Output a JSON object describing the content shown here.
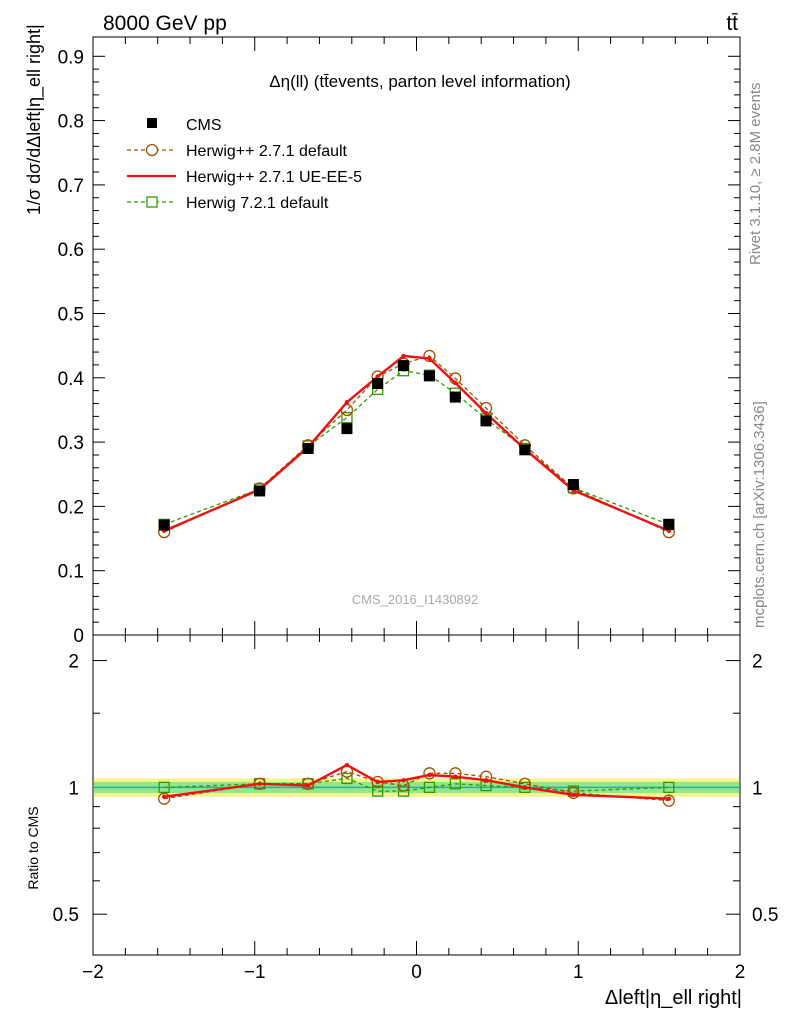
{
  "header": {
    "energy_label": "8000 GeV pp",
    "process_label": "tt̄"
  },
  "side_labels": {
    "rivet": "Rivet 3.1.10, ≥ 2.8M events",
    "mcplots": "mcplots.cern.ch [arXiv:1306.3436]"
  },
  "watermark": "CMS_2016_I1430892",
  "plot_title": "Δη(ll) (tt̄events, parton level information)",
  "colors": {
    "data": "#000000",
    "herwig_default": "#a05000",
    "herwig_ueee5": "#ee1111",
    "herwig7": "#339900",
    "band_inner": "#8fe88f",
    "band_outer": "#f4f48a",
    "ref_line": "#33aa99"
  },
  "chart_data": [
    {
      "type": "scatter",
      "panel": "main",
      "ylabel": "1/σ dσ/dΔleft|η_ell right|",
      "xlim": [
        -2,
        2
      ],
      "ylim": [
        0,
        0.93
      ],
      "yticks": [
        0,
        0.1,
        0.2,
        0.3,
        0.4,
        0.5,
        0.6,
        0.7,
        0.8,
        0.9
      ],
      "ytick_labels": [
        "0",
        "0.1",
        "0.2",
        "0.3",
        "0.4",
        "0.5",
        "0.6",
        "0.7",
        "0.8",
        "0.9"
      ],
      "legend_position": "top-left",
      "x": [
        -1.56,
        -0.97,
        -0.67,
        -0.43,
        -0.24,
        -0.08,
        0.08,
        0.24,
        0.43,
        0.67,
        0.97,
        1.56
      ],
      "series": [
        {
          "name": "CMS",
          "style": "marker",
          "color": "#000000",
          "values": [
            0.171,
            0.224,
            0.29,
            0.321,
            0.391,
            0.419,
            0.403,
            0.37,
            0.333,
            0.288,
            0.234,
            0.172
          ]
        },
        {
          "name": "Herwig++ 2.7.1 default",
          "style": "dashed-circle",
          "color": "#a05000",
          "values": [
            0.16,
            0.228,
            0.295,
            0.35,
            0.402,
            0.422,
            0.434,
            0.399,
            0.353,
            0.295,
            0.228,
            0.16
          ]
        },
        {
          "name": "Herwig++ 2.7.1 UE-EE-5",
          "style": "solid",
          "color": "#ee1111",
          "values": [
            0.162,
            0.226,
            0.292,
            0.362,
            0.402,
            0.434,
            0.43,
            0.392,
            0.345,
            0.289,
            0.225,
            0.162
          ]
        },
        {
          "name": "Herwig 7.2.1 default",
          "style": "dashed-square",
          "color": "#339900",
          "values": [
            0.172,
            0.227,
            0.294,
            0.338,
            0.382,
            0.411,
            0.404,
            0.376,
            0.336,
            0.29,
            0.229,
            0.172
          ]
        }
      ]
    },
    {
      "type": "scatter",
      "panel": "ratio",
      "ylabel": "Ratio to CMS",
      "xlabel": "Δleft|η_ell right|",
      "xlim": [
        -2,
        2
      ],
      "ylim": [
        0.4,
        2.3
      ],
      "log_y": true,
      "yticks": [
        0.5,
        1,
        2
      ],
      "ytick_labels": [
        "0.5",
        "1",
        "2"
      ],
      "xticks": [
        -2,
        -1,
        0,
        1,
        2
      ],
      "xtick_labels": [
        "−2",
        "−1",
        "0",
        "1",
        "2"
      ],
      "band_inner": [
        0.97,
        1.03
      ],
      "band_outer": [
        0.95,
        1.05
      ],
      "x": [
        -1.56,
        -0.97,
        -0.67,
        -0.43,
        -0.24,
        -0.08,
        0.08,
        0.24,
        0.43,
        0.67,
        0.97,
        1.56
      ],
      "series": [
        {
          "name": "Herwig++ 2.7.1 default",
          "style": "dashed-circle",
          "color": "#a05000",
          "values": [
            0.94,
            1.02,
            1.02,
            1.09,
            1.03,
            1.01,
            1.08,
            1.08,
            1.06,
            1.02,
            0.97,
            0.93
          ]
        },
        {
          "name": "Herwig++ 2.7.1 UE-EE-5",
          "style": "solid",
          "color": "#ee1111",
          "values": [
            0.95,
            1.02,
            1.01,
            1.13,
            1.03,
            1.04,
            1.07,
            1.06,
            1.04,
            1.0,
            0.96,
            0.94
          ]
        },
        {
          "name": "Herwig 7.2.1 default",
          "style": "dashed-square",
          "color": "#339900",
          "values": [
            1.0,
            1.02,
            1.02,
            1.05,
            0.98,
            0.98,
            1.0,
            1.02,
            1.01,
            1.0,
            0.98,
            1.0
          ]
        }
      ]
    }
  ]
}
